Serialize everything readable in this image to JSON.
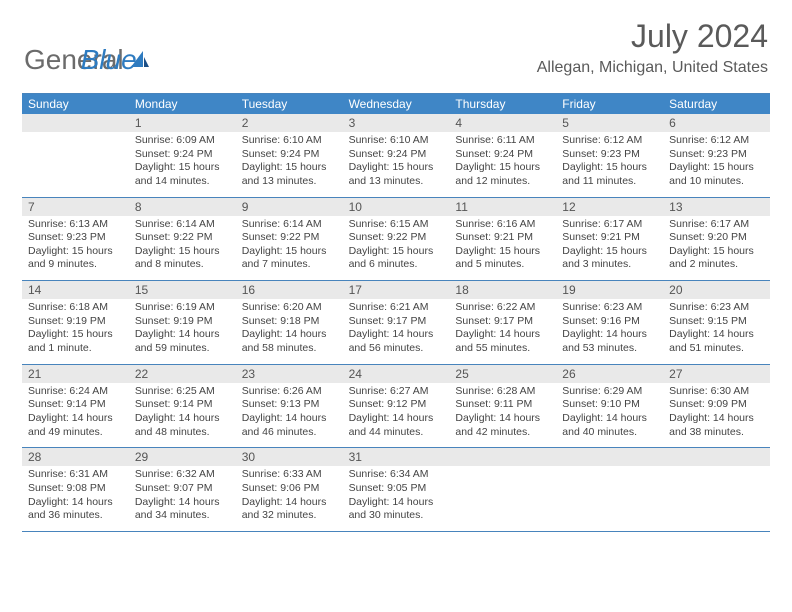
{
  "logo": {
    "part1": "General",
    "part2": "Blue"
  },
  "title": "July 2024",
  "location": "Allegan, Michigan, United States",
  "header_bg": "#3f86c6",
  "border_color": "#4884bc",
  "daynum_bg": "#e9e9e9",
  "text_color": "#444444",
  "days_of_week": [
    "Sunday",
    "Monday",
    "Tuesday",
    "Wednesday",
    "Thursday",
    "Friday",
    "Saturday"
  ],
  "weeks": [
    {
      "nums": [
        "",
        "1",
        "2",
        "3",
        "4",
        "5",
        "6"
      ],
      "cells": [
        [],
        [
          "Sunrise: 6:09 AM",
          "Sunset: 9:24 PM",
          "Daylight: 15 hours",
          "and 14 minutes."
        ],
        [
          "Sunrise: 6:10 AM",
          "Sunset: 9:24 PM",
          "Daylight: 15 hours",
          "and 13 minutes."
        ],
        [
          "Sunrise: 6:10 AM",
          "Sunset: 9:24 PM",
          "Daylight: 15 hours",
          "and 13 minutes."
        ],
        [
          "Sunrise: 6:11 AM",
          "Sunset: 9:24 PM",
          "Daylight: 15 hours",
          "and 12 minutes."
        ],
        [
          "Sunrise: 6:12 AM",
          "Sunset: 9:23 PM",
          "Daylight: 15 hours",
          "and 11 minutes."
        ],
        [
          "Sunrise: 6:12 AM",
          "Sunset: 9:23 PM",
          "Daylight: 15 hours",
          "and 10 minutes."
        ]
      ]
    },
    {
      "nums": [
        "7",
        "8",
        "9",
        "10",
        "11",
        "12",
        "13"
      ],
      "cells": [
        [
          "Sunrise: 6:13 AM",
          "Sunset: 9:23 PM",
          "Daylight: 15 hours",
          "and 9 minutes."
        ],
        [
          "Sunrise: 6:14 AM",
          "Sunset: 9:22 PM",
          "Daylight: 15 hours",
          "and 8 minutes."
        ],
        [
          "Sunrise: 6:14 AM",
          "Sunset: 9:22 PM",
          "Daylight: 15 hours",
          "and 7 minutes."
        ],
        [
          "Sunrise: 6:15 AM",
          "Sunset: 9:22 PM",
          "Daylight: 15 hours",
          "and 6 minutes."
        ],
        [
          "Sunrise: 6:16 AM",
          "Sunset: 9:21 PM",
          "Daylight: 15 hours",
          "and 5 minutes."
        ],
        [
          "Sunrise: 6:17 AM",
          "Sunset: 9:21 PM",
          "Daylight: 15 hours",
          "and 3 minutes."
        ],
        [
          "Sunrise: 6:17 AM",
          "Sunset: 9:20 PM",
          "Daylight: 15 hours",
          "and 2 minutes."
        ]
      ]
    },
    {
      "nums": [
        "14",
        "15",
        "16",
        "17",
        "18",
        "19",
        "20"
      ],
      "cells": [
        [
          "Sunrise: 6:18 AM",
          "Sunset: 9:19 PM",
          "Daylight: 15 hours",
          "and 1 minute."
        ],
        [
          "Sunrise: 6:19 AM",
          "Sunset: 9:19 PM",
          "Daylight: 14 hours",
          "and 59 minutes."
        ],
        [
          "Sunrise: 6:20 AM",
          "Sunset: 9:18 PM",
          "Daylight: 14 hours",
          "and 58 minutes."
        ],
        [
          "Sunrise: 6:21 AM",
          "Sunset: 9:17 PM",
          "Daylight: 14 hours",
          "and 56 minutes."
        ],
        [
          "Sunrise: 6:22 AM",
          "Sunset: 9:17 PM",
          "Daylight: 14 hours",
          "and 55 minutes."
        ],
        [
          "Sunrise: 6:23 AM",
          "Sunset: 9:16 PM",
          "Daylight: 14 hours",
          "and 53 minutes."
        ],
        [
          "Sunrise: 6:23 AM",
          "Sunset: 9:15 PM",
          "Daylight: 14 hours",
          "and 51 minutes."
        ]
      ]
    },
    {
      "nums": [
        "21",
        "22",
        "23",
        "24",
        "25",
        "26",
        "27"
      ],
      "cells": [
        [
          "Sunrise: 6:24 AM",
          "Sunset: 9:14 PM",
          "Daylight: 14 hours",
          "and 49 minutes."
        ],
        [
          "Sunrise: 6:25 AM",
          "Sunset: 9:14 PM",
          "Daylight: 14 hours",
          "and 48 minutes."
        ],
        [
          "Sunrise: 6:26 AM",
          "Sunset: 9:13 PM",
          "Daylight: 14 hours",
          "and 46 minutes."
        ],
        [
          "Sunrise: 6:27 AM",
          "Sunset: 9:12 PM",
          "Daylight: 14 hours",
          "and 44 minutes."
        ],
        [
          "Sunrise: 6:28 AM",
          "Sunset: 9:11 PM",
          "Daylight: 14 hours",
          "and 42 minutes."
        ],
        [
          "Sunrise: 6:29 AM",
          "Sunset: 9:10 PM",
          "Daylight: 14 hours",
          "and 40 minutes."
        ],
        [
          "Sunrise: 6:30 AM",
          "Sunset: 9:09 PM",
          "Daylight: 14 hours",
          "and 38 minutes."
        ]
      ]
    },
    {
      "nums": [
        "28",
        "29",
        "30",
        "31",
        "",
        "",
        ""
      ],
      "cells": [
        [
          "Sunrise: 6:31 AM",
          "Sunset: 9:08 PM",
          "Daylight: 14 hours",
          "and 36 minutes."
        ],
        [
          "Sunrise: 6:32 AM",
          "Sunset: 9:07 PM",
          "Daylight: 14 hours",
          "and 34 minutes."
        ],
        [
          "Sunrise: 6:33 AM",
          "Sunset: 9:06 PM",
          "Daylight: 14 hours",
          "and 32 minutes."
        ],
        [
          "Sunrise: 6:34 AM",
          "Sunset: 9:05 PM",
          "Daylight: 14 hours",
          "and 30 minutes."
        ],
        [],
        [],
        []
      ]
    }
  ]
}
